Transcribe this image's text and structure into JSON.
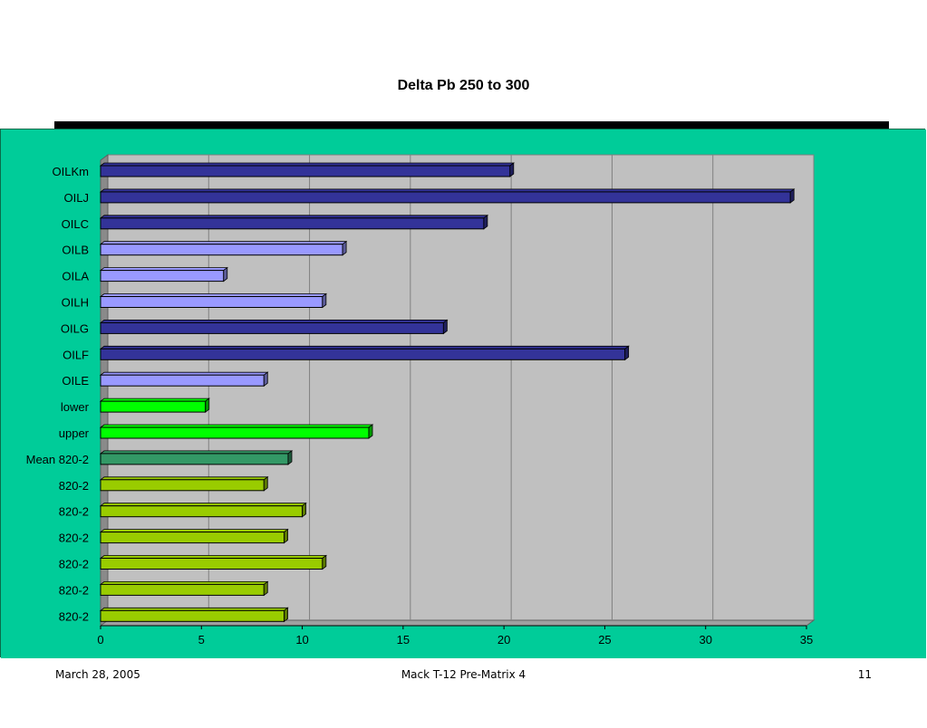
{
  "colors": {
    "panel_bg": "#00CC99",
    "plot_bg": "#C0C0C0",
    "dark_blue": "#333399",
    "light_blue": "#9999FF",
    "bright_green": "#00FF00",
    "sea_green": "#339966",
    "yellow_green": "#99CC00"
  },
  "chart_data": {
    "type": "bar",
    "orientation": "horizontal",
    "title": "Delta Pb 250 to 300",
    "xlabel": "",
    "ylabel": "",
    "xlim": [
      0,
      35
    ],
    "x_ticks": [
      0,
      5,
      10,
      15,
      20,
      25,
      30,
      35
    ],
    "grid": "vertical gridlines",
    "legend": "none",
    "bars": [
      {
        "label": "OILKm",
        "value": 20.3,
        "color": "#333399"
      },
      {
        "label": "OILJ",
        "value": 34.2,
        "color": "#333399"
      },
      {
        "label": "OILC",
        "value": 19.0,
        "color": "#333399"
      },
      {
        "label": "OILB",
        "value": 12.0,
        "color": "#9999FF"
      },
      {
        "label": "OILA",
        "value": 6.1,
        "color": "#9999FF"
      },
      {
        "label": "OILH",
        "value": 11.0,
        "color": "#9999FF"
      },
      {
        "label": "OILG",
        "value": 17.0,
        "color": "#333399"
      },
      {
        "label": "OILF",
        "value": 26.0,
        "color": "#333399"
      },
      {
        "label": "OILE",
        "value": 8.1,
        "color": "#9999FF"
      },
      {
        "label": "lower",
        "value": 5.2,
        "color": "#00FF00"
      },
      {
        "label": "upper",
        "value": 13.3,
        "color": "#00FF00"
      },
      {
        "label": "Mean 820-2",
        "value": 9.3,
        "color": "#339966"
      },
      {
        "label": "820-2",
        "value": 8.1,
        "color": "#99CC00"
      },
      {
        "label": "820-2",
        "value": 10.0,
        "color": "#99CC00"
      },
      {
        "label": "820-2",
        "value": 9.1,
        "color": "#99CC00"
      },
      {
        "label": "820-2",
        "value": 11.0,
        "color": "#99CC00"
      },
      {
        "label": "820-2",
        "value": 8.1,
        "color": "#99CC00"
      },
      {
        "label": "820-2",
        "value": 9.1,
        "color": "#99CC00"
      }
    ]
  },
  "footer": {
    "date": "March 28, 2005",
    "center": "Mack T-12 Pre-Matrix 4",
    "page": "11"
  }
}
